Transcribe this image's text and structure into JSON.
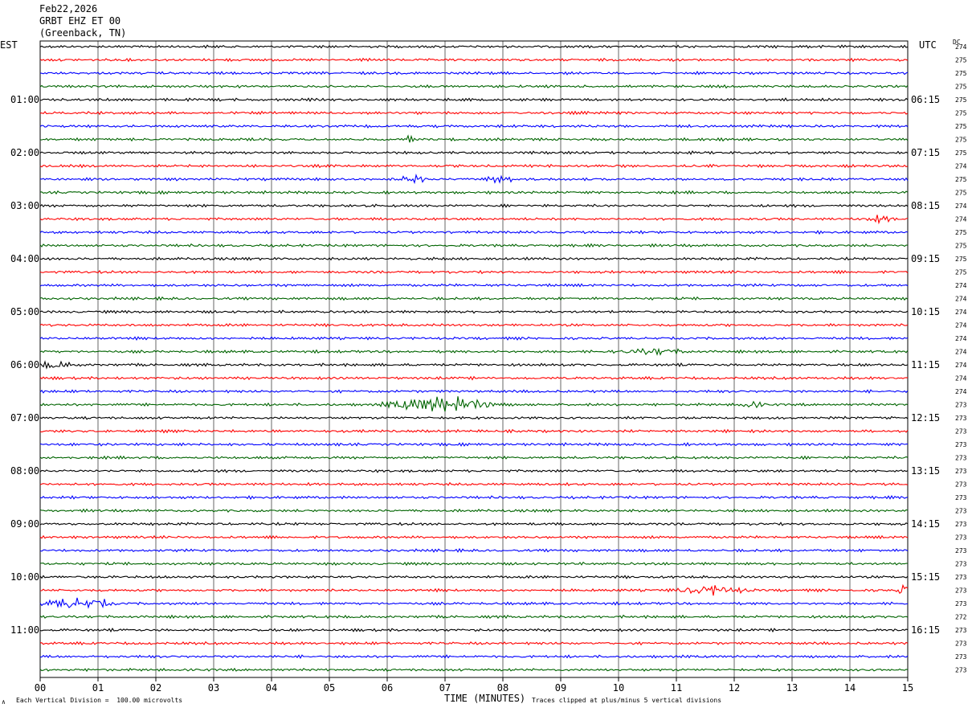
{
  "header": {
    "date": "Feb22,2026",
    "station": "GRBT EHZ ET 00",
    "location": "(Greenback, TN)"
  },
  "left_tz": "EST",
  "right_tz": "UTC",
  "dc_header": "DC",
  "footer": {
    "x_title": "TIME (MINUTES)",
    "scale_note": "Each Vertical Division =  100.00 microvolts",
    "clip_note": "Traces clipped at plus/minus 5 vertical divisions",
    "corner_mark": "∧"
  },
  "colors": {
    "trace_cycle": [
      "#000000",
      "#ff0000",
      "#0000ff",
      "#006400"
    ],
    "grid": "#000000"
  },
  "chart_data": {
    "type": "line",
    "description_of_series": "48 seismogram traces of 15 minutes each, colors cycle black/red/blue/green",
    "xlabel": "TIME (MINUTES)",
    "xlim": [
      0,
      15
    ],
    "x_ticks": [
      "00",
      "01",
      "02",
      "03",
      "04",
      "05",
      "06",
      "07",
      "08",
      "09",
      "10",
      "11",
      "12",
      "13",
      "14",
      "15"
    ],
    "row_count": 48,
    "left_hour_labels": [
      "01:00",
      "02:00",
      "03:00",
      "04:00",
      "05:00",
      "06:00",
      "07:00",
      "08:00",
      "09:00",
      "10:00",
      "11:00"
    ],
    "right_hour_labels": [
      "06:15",
      "07:15",
      "08:15",
      "09:15",
      "10:15",
      "11:15",
      "12:15",
      "13:15",
      "14:15",
      "15:15",
      "16:15"
    ],
    "dc_offsets": [
      274,
      275,
      275,
      275,
      275,
      275,
      275,
      275,
      275,
      274,
      275,
      275,
      274,
      274,
      275,
      275,
      275,
      275,
      274,
      274,
      274,
      274,
      274,
      274,
      274,
      274,
      274,
      273,
      273,
      273,
      273,
      273,
      273,
      273,
      273,
      273,
      273,
      273,
      273,
      273,
      273,
      273,
      273,
      272,
      273,
      273,
      273,
      273
    ],
    "events": [
      {
        "row": 7,
        "minute": 6.38,
        "amp": 10,
        "dur": 0.05
      },
      {
        "row": 10,
        "minute": 6.45,
        "amp": 6,
        "dur": 0.4
      },
      {
        "row": 10,
        "minute": 7.95,
        "amp": 7,
        "dur": 0.3
      },
      {
        "row": 13,
        "minute": 14.5,
        "amp": 5,
        "dur": 0.4
      },
      {
        "row": 27,
        "minute": 6.95,
        "amp": 15,
        "dur": 1.2
      },
      {
        "row": 27,
        "minute": 12.3,
        "amp": 6,
        "dur": 0.3
      },
      {
        "row": 23,
        "minute": 10.6,
        "amp": 5,
        "dur": 0.8
      },
      {
        "row": 41,
        "minute": 11.6,
        "amp": 8,
        "dur": 0.8
      },
      {
        "row": 41,
        "minute": 14.95,
        "amp": 9,
        "dur": 0.2
      },
      {
        "row": 42,
        "minute": 0.6,
        "amp": 10,
        "dur": 0.8
      },
      {
        "row": 42,
        "minute": 1.0,
        "amp": 8,
        "dur": 0.3
      },
      {
        "row": 24,
        "minute": 0.2,
        "amp": 5,
        "dur": 0.6
      }
    ]
  }
}
